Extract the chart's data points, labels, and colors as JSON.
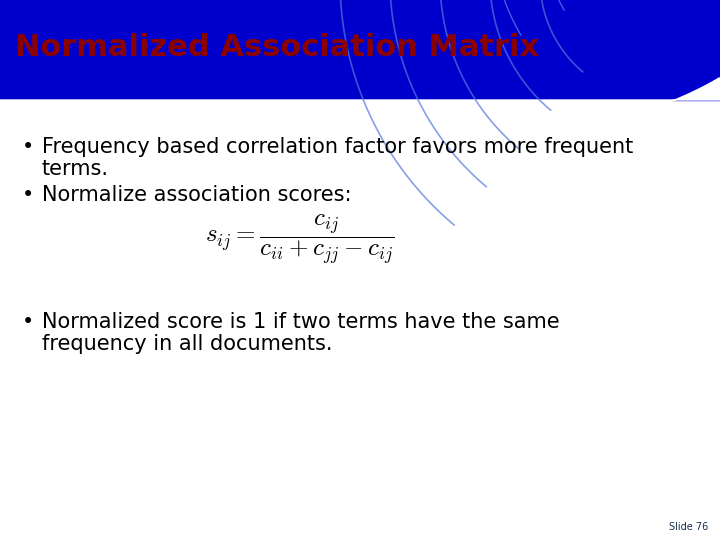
{
  "title": "Normalized Association Matrix",
  "title_color": "#8B0000",
  "title_fontsize": 22,
  "bullet1_line1": "Frequency based correlation factor favors more frequent",
  "bullet1_line2": "terms.",
  "bullet2": "Normalize association scores:",
  "bullet3_line1": "Normalized score is 1 if two terms have the same",
  "bullet3_line2": "frequency in all documents.",
  "slide_number": "Slide 76",
  "bg_color": "#FFFFFF",
  "blue_color": "#0000CC",
  "arc_color": "#6699FF",
  "text_color": "#000000",
  "slide_num_color": "#1a3050",
  "body_fontsize": 15,
  "formula_fontsize": 14
}
